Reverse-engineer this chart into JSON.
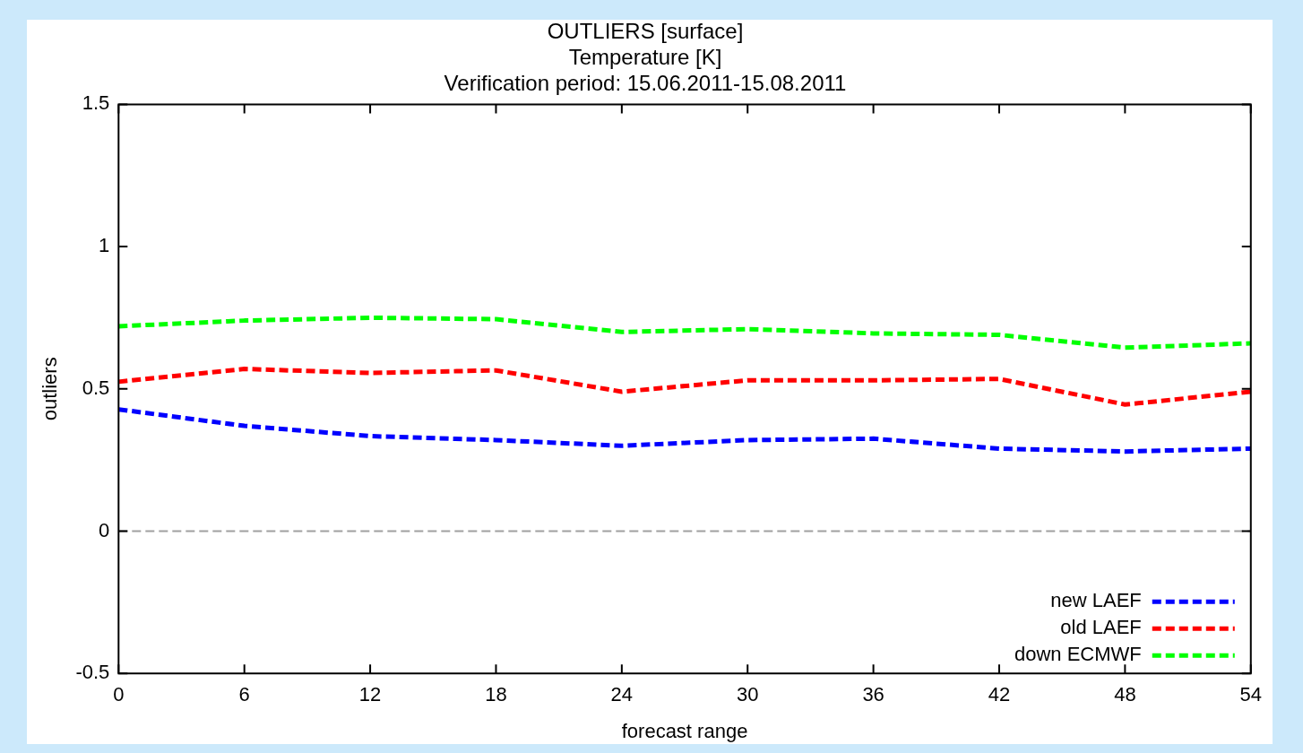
{
  "chart_data": {
    "type": "line",
    "title": "OUTLIERS [surface]",
    "subtitle": "Temperature [K]\nVerification period: 15.06.2011-15.08.2011",
    "xlabel": "forecast range",
    "ylabel": "outliers",
    "x": [
      0,
      6,
      12,
      18,
      24,
      30,
      36,
      42,
      48,
      54
    ],
    "series": [
      {
        "name": "new LAEF",
        "color": "#0000ff",
        "values": [
          0.428,
          0.37,
          0.334,
          0.32,
          0.3,
          0.32,
          0.325,
          0.29,
          0.28,
          0.29
        ]
      },
      {
        "name": "old LAEF",
        "color": "#ff0000",
        "values": [
          0.525,
          0.57,
          0.556,
          0.565,
          0.49,
          0.53,
          0.53,
          0.535,
          0.445,
          0.49
        ]
      },
      {
        "name": "down ECMWF",
        "color": "#00ff00",
        "values": [
          0.72,
          0.74,
          0.75,
          0.745,
          0.7,
          0.71,
          0.695,
          0.69,
          0.645,
          0.66
        ]
      }
    ],
    "xlim": [
      0,
      54
    ],
    "xticks": [
      0,
      6,
      12,
      18,
      24,
      30,
      36,
      42,
      48,
      54
    ],
    "ylim": [
      -0.5,
      1.5
    ],
    "yticks": [
      -0.5,
      0,
      0.5,
      1,
      1.5
    ],
    "ref_lines": [
      {
        "axis": "y",
        "value": 0,
        "color": "#a0a0a0",
        "line_style": "dashed"
      }
    ],
    "legend": "bottom right",
    "grid": false,
    "marker": "none",
    "line_style": "dashed"
  }
}
